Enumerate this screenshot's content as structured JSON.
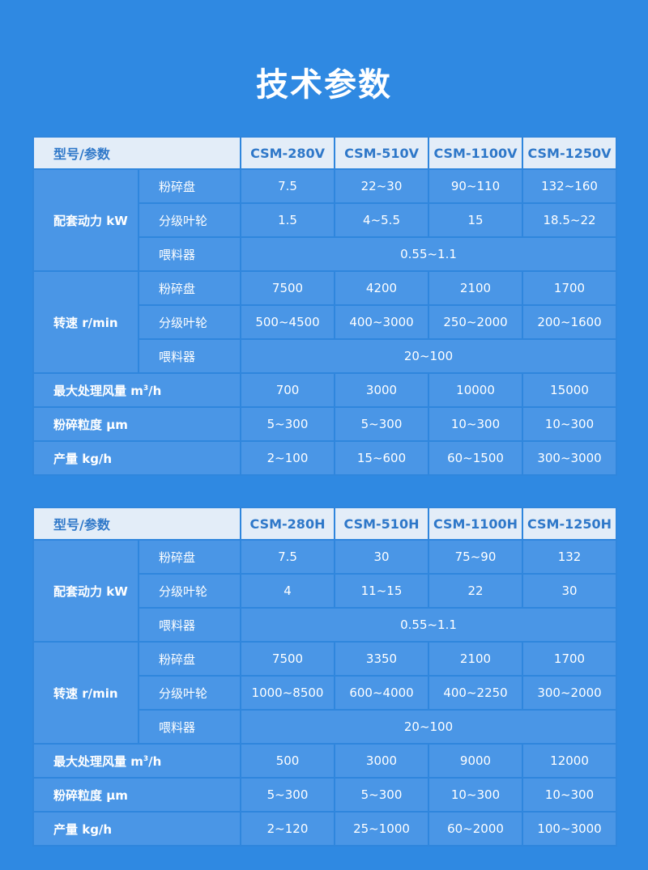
{
  "title": "技术参数",
  "tables": [
    {
      "header": {
        "label": "型号/参数",
        "models": [
          "CSM-280V",
          "CSM-510V",
          "CSM-1100V",
          "CSM-1250V"
        ]
      },
      "power": {
        "label": "配套动力 kW",
        "crush_label": "粉碎盘",
        "crush": [
          "7.5",
          "22~30",
          "90~110",
          "132~160"
        ],
        "impeller_label": "分级叶轮",
        "impeller": [
          "1.5",
          "4~5.5",
          "15",
          "18.5~22"
        ],
        "feeder_label": "喂料器",
        "feeder": "0.55~1.1"
      },
      "speed": {
        "label": "转速 r/min",
        "crush_label": "粉碎盘",
        "crush": [
          "7500",
          "4200",
          "2100",
          "1700"
        ],
        "impeller_label": "分级叶轮",
        "impeller": [
          "500~4500",
          "400~3000",
          "250~2000",
          "200~1600"
        ],
        "feeder_label": "喂料器",
        "feeder": "20~100"
      },
      "airflow": {
        "label": "最大处理风量 m",
        "sup": "3",
        "unit": "/h",
        "values": [
          "700",
          "3000",
          "10000",
          "15000"
        ]
      },
      "fineness": {
        "label": "粉碎粒度 μm",
        "values": [
          "5~300",
          "5~300",
          "10~300",
          "10~300"
        ]
      },
      "output": {
        "label": "产量 kg/h",
        "values": [
          "2~100",
          "15~600",
          "60~1500",
          "300~3000"
        ]
      }
    },
    {
      "header": {
        "label": "型号/参数",
        "models": [
          "CSM-280H",
          "CSM-510H",
          "CSM-1100H",
          "CSM-1250H"
        ]
      },
      "power": {
        "label": "配套动力 kW",
        "crush_label": "粉碎盘",
        "crush": [
          "7.5",
          "30",
          "75~90",
          "132"
        ],
        "impeller_label": "分级叶轮",
        "impeller": [
          "4",
          "11~15",
          "22",
          "30"
        ],
        "feeder_label": "喂料器",
        "feeder": "0.55~1.1"
      },
      "speed": {
        "label": "转速 r/min",
        "crush_label": "粉碎盘",
        "crush": [
          "7500",
          "3350",
          "2100",
          "1700"
        ],
        "impeller_label": "分级叶轮",
        "impeller": [
          "1000~8500",
          "600~4000",
          "400~2250",
          "300~2000"
        ],
        "feeder_label": "喂料器",
        "feeder": "20~100"
      },
      "airflow": {
        "label": "最大处理风量 m",
        "sup": "3",
        "unit": "/h",
        "values": [
          "500",
          "3000",
          "9000",
          "12000"
        ]
      },
      "fineness": {
        "label": "粉碎粒度 μm",
        "values": [
          "5~300",
          "5~300",
          "10~300",
          "10~300"
        ]
      },
      "output": {
        "label": "产量 kg/h",
        "values": [
          "2~120",
          "25~1000",
          "60~2000",
          "100~3000"
        ]
      }
    }
  ]
}
